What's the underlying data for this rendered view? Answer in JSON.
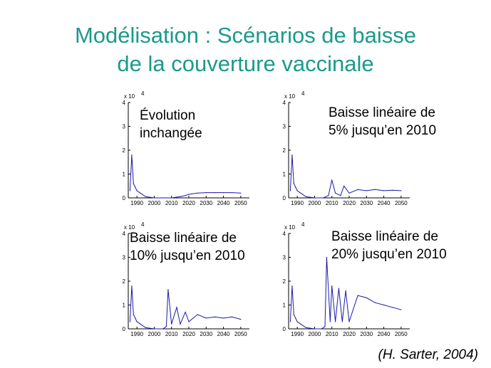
{
  "title_line1": "Modélisation : Scénarios de baisse",
  "title_line2": "de la couverture vaccinale",
  "source": "(H. Sarter, 2004)",
  "colors": {
    "title": "#1a9a8c",
    "series": "#1a1aaa",
    "axis": "#000000"
  },
  "chart_data": [
    {
      "type": "line",
      "label_lines": [
        "Évolution",
        "inchangée"
      ],
      "scale_note": "x 10",
      "scale_exp": "4",
      "xlim": [
        1985,
        2055
      ],
      "ylim": [
        0,
        4
      ],
      "xticks": [
        "1990",
        "2000",
        "2010",
        "2020",
        "2030",
        "2040",
        "2050"
      ],
      "yticks": [
        "0",
        "1",
        "2",
        "3",
        "4"
      ],
      "x": [
        1986,
        1987,
        1988,
        1989,
        1990,
        1992,
        1995,
        2000,
        2005,
        2010,
        2015,
        2018,
        2020,
        2025,
        2030,
        2035,
        2040,
        2045,
        2050
      ],
      "y": [
        0.3,
        1.8,
        0.6,
        0.45,
        0.3,
        0.2,
        0.05,
        0.0,
        0.0,
        0.0,
        0.05,
        0.1,
        0.15,
        0.2,
        0.22,
        0.22,
        0.22,
        0.22,
        0.2
      ]
    },
    {
      "type": "line",
      "label_lines": [
        "Baisse linéaire de",
        "5% jusqu’en 2010"
      ],
      "scale_note": "x 10",
      "scale_exp": "4",
      "xlim": [
        1985,
        2055
      ],
      "ylim": [
        0,
        4
      ],
      "xticks": [
        "1990",
        "2000",
        "2010",
        "2020",
        "2030",
        "2040",
        "2050"
      ],
      "yticks": [
        "0",
        "1",
        "2",
        "3",
        "4"
      ],
      "x": [
        1986,
        1987,
        1988,
        1989,
        1990,
        1992,
        1995,
        2000,
        2005,
        2008,
        2010,
        2012,
        2015,
        2017,
        2020,
        2025,
        2030,
        2035,
        2040,
        2045,
        2050
      ],
      "y": [
        0.3,
        1.8,
        0.6,
        0.45,
        0.3,
        0.2,
        0.05,
        0.0,
        0.0,
        0.1,
        0.75,
        0.2,
        0.1,
        0.5,
        0.2,
        0.35,
        0.3,
        0.35,
        0.3,
        0.32,
        0.3
      ]
    },
    {
      "type": "line",
      "label_lines": [
        "Baisse linéaire de",
        "10% jusqu’en 2010"
      ],
      "scale_note": "x 10",
      "scale_exp": "4",
      "xlim": [
        1985,
        2055
      ],
      "ylim": [
        0,
        4
      ],
      "xticks": [
        "1990",
        "2000",
        "2010",
        "2020",
        "2030",
        "2040",
        "2050"
      ],
      "yticks": [
        "0",
        "1",
        "2",
        "3",
        "4"
      ],
      "x": [
        1986,
        1987,
        1988,
        1989,
        1990,
        1992,
        1995,
        2000,
        2005,
        2007,
        2008,
        2010,
        2013,
        2015,
        2018,
        2020,
        2025,
        2030,
        2035,
        2040,
        2045,
        2050
      ],
      "y": [
        0.3,
        1.8,
        0.6,
        0.45,
        0.3,
        0.2,
        0.05,
        0.0,
        0.0,
        0.1,
        1.65,
        0.2,
        0.9,
        0.2,
        0.7,
        0.3,
        0.6,
        0.45,
        0.5,
        0.45,
        0.5,
        0.4
      ]
    },
    {
      "type": "line",
      "label_lines": [
        "Baisse linéaire de",
        "20% jusqu’en 2010"
      ],
      "scale_note": "x 10",
      "scale_exp": "4",
      "xlim": [
        1985,
        2055
      ],
      "ylim": [
        0,
        4
      ],
      "xticks": [
        "1990",
        "2000",
        "2010",
        "2020",
        "2030",
        "2040",
        "2050"
      ],
      "yticks": [
        "0",
        "1",
        "2",
        "3",
        "4"
      ],
      "x": [
        1986,
        1987,
        1988,
        1989,
        1990,
        1992,
        1995,
        2000,
        2004,
        2006,
        2007,
        2009,
        2010,
        2012,
        2014,
        2016,
        2018,
        2020,
        2025,
        2030,
        2035,
        2040,
        2045,
        2050
      ],
      "y": [
        0.3,
        1.8,
        0.6,
        0.45,
        0.3,
        0.2,
        0.05,
        0.0,
        0.0,
        0.1,
        3.0,
        0.3,
        1.8,
        0.3,
        1.7,
        0.3,
        1.6,
        0.3,
        1.4,
        1.3,
        1.1,
        1.0,
        0.9,
        0.8
      ]
    }
  ]
}
